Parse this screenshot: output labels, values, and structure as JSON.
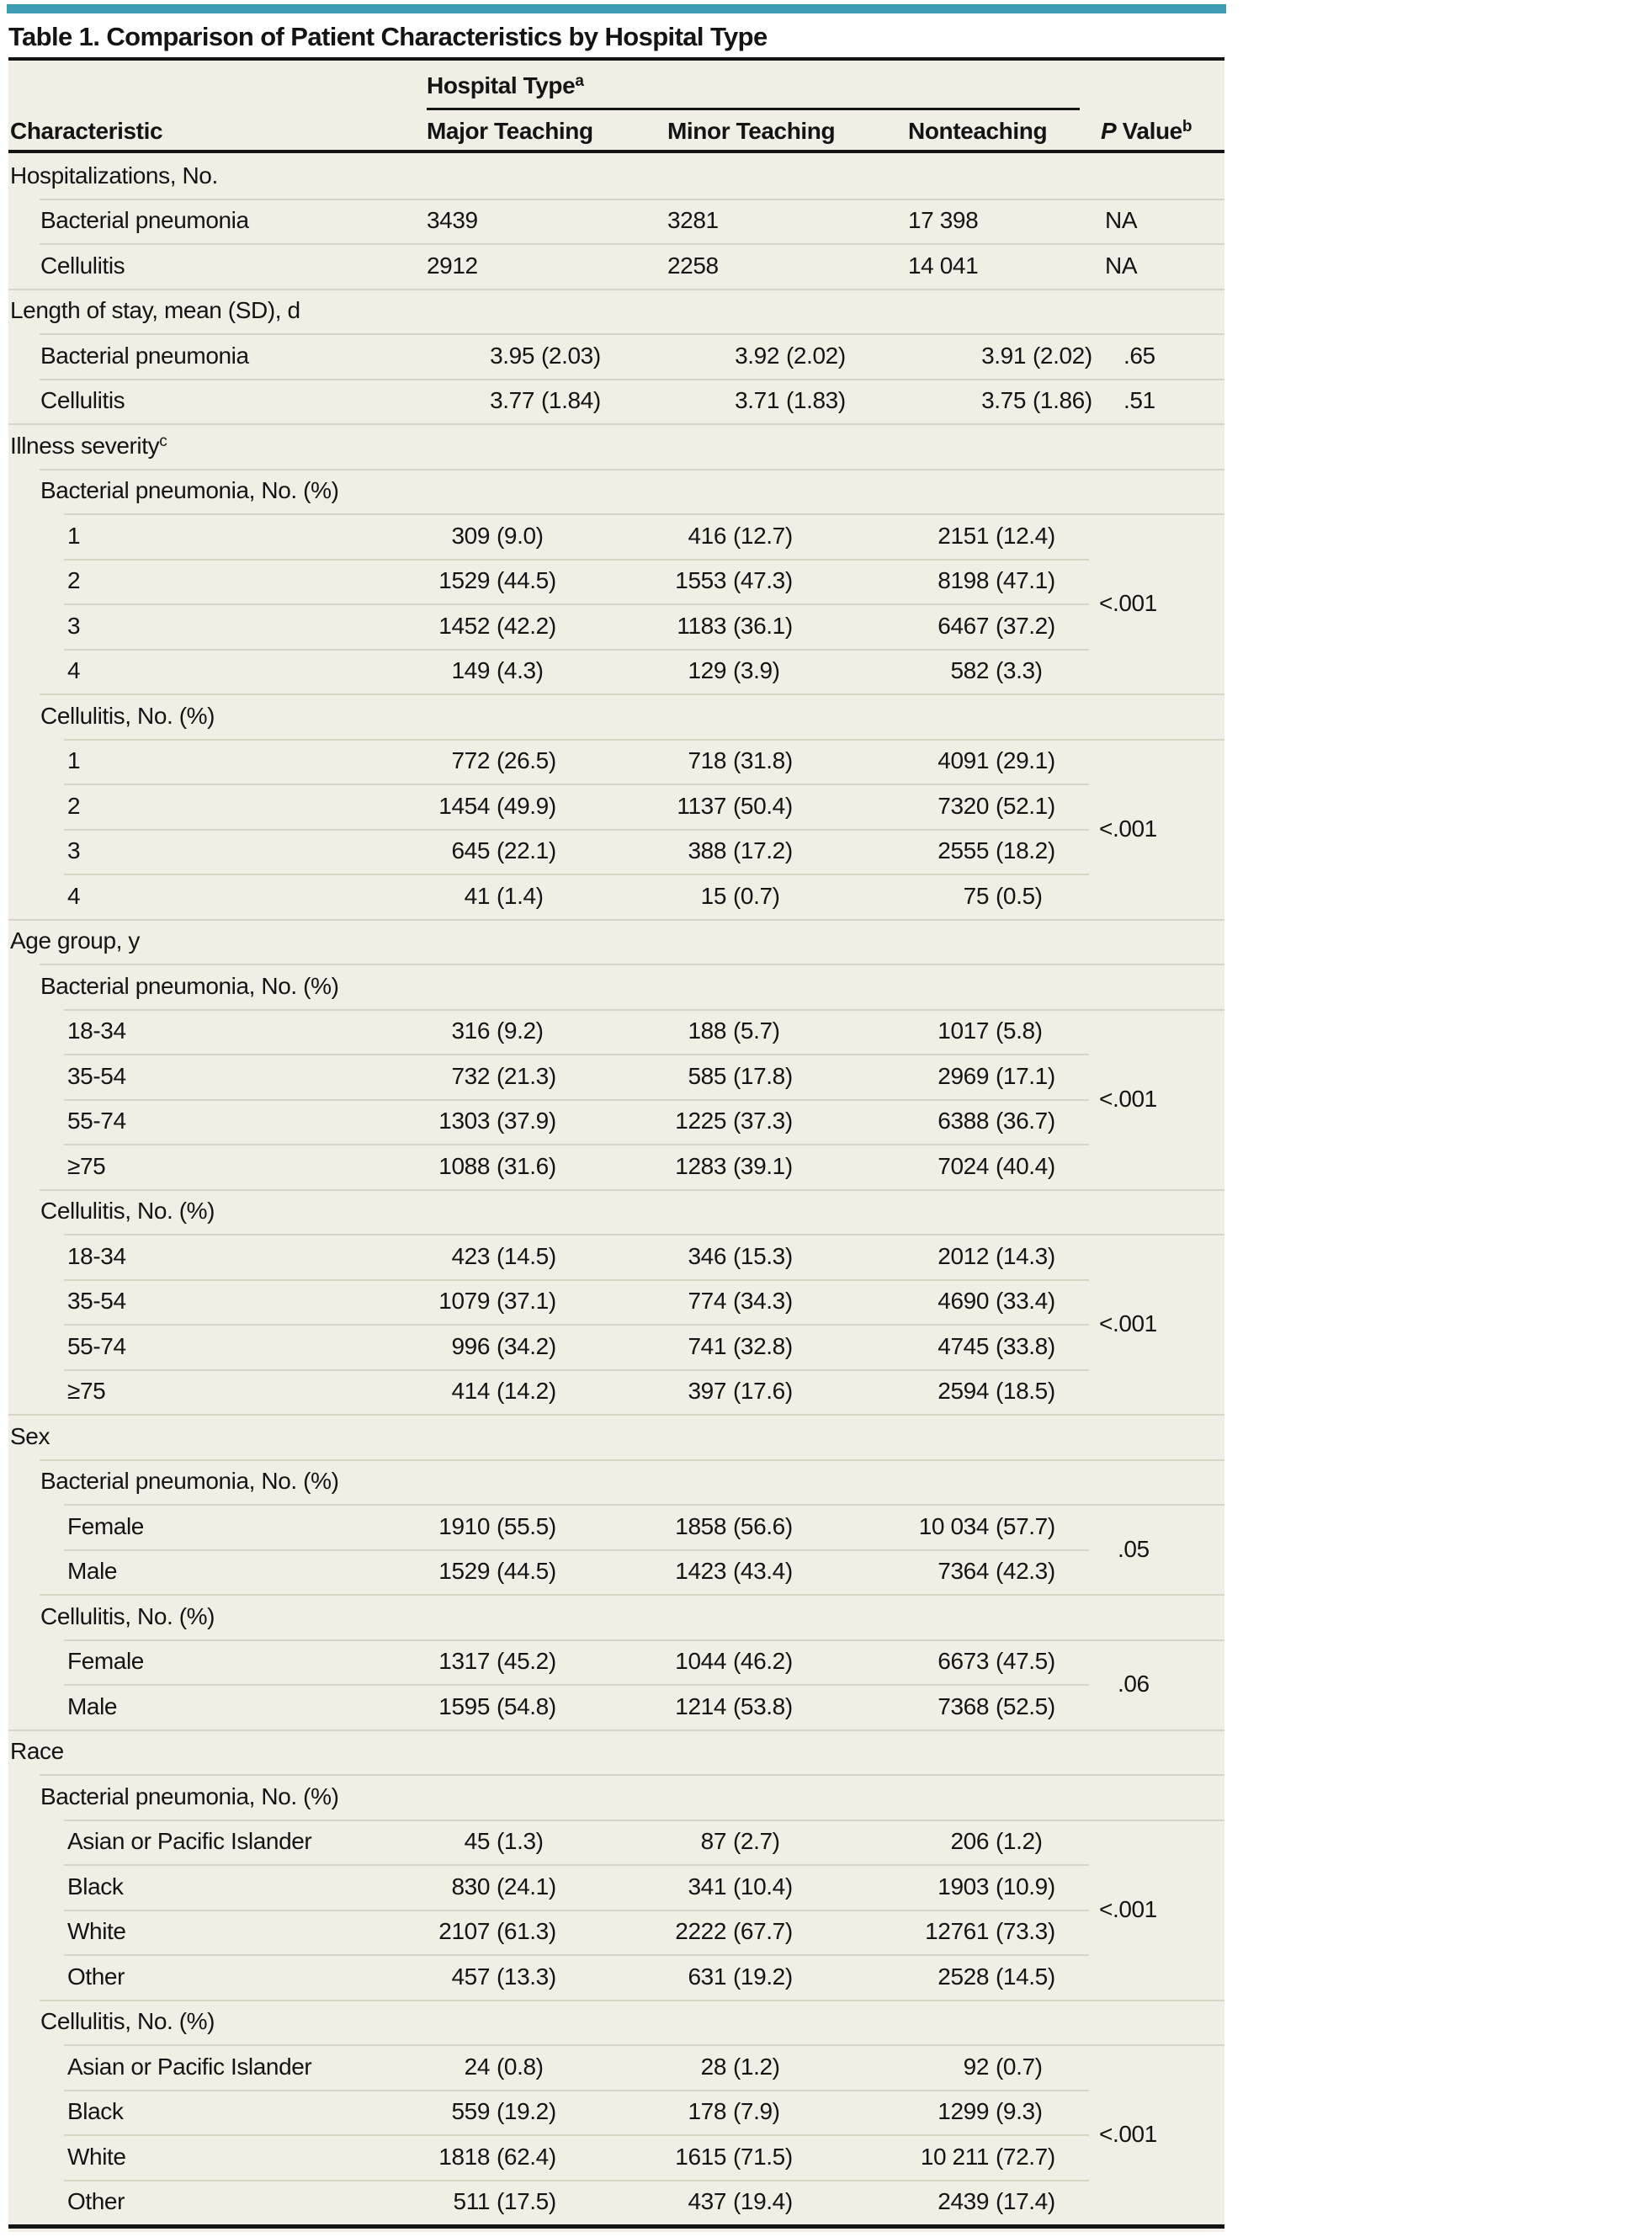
{
  "title": "Table 1. Comparison of Patient Characteristics by Hospital Type",
  "colors": {
    "accent_teal": "#3D9CB1",
    "table_background": "#F1EFE5",
    "rule_black": "#141414",
    "row_line_gray": "#D8D5C6",
    "text": "#141414"
  },
  "header": {
    "characteristic": "Characteristic",
    "group_label": "Hospital Type",
    "group_sup": "a",
    "col_major": "Major Teaching",
    "col_minor": "Minor Teaching",
    "col_nonteaching": "Nonteaching",
    "p_label_italic": "P",
    "p_label_rest": " Value",
    "p_sup": "b"
  },
  "sections": [
    {
      "header": "Hospitalizations, No.",
      "sup": "",
      "groups": [
        {
          "subheader": null,
          "kind": "count",
          "span_p": null,
          "rows": [
            {
              "label": "Bacterial pneumonia",
              "cells": [
                {
                  "n": "3439",
                  "pct": ""
                },
                {
                  "n": "3281",
                  "pct": ""
                },
                {
                  "n": "17 398",
                  "pct": ""
                }
              ],
              "p": "NA"
            },
            {
              "label": "Cellulitis",
              "cells": [
                {
                  "n": "2912",
                  "pct": ""
                },
                {
                  "n": "2258",
                  "pct": ""
                },
                {
                  "n": "14 041",
                  "pct": ""
                }
              ],
              "p": "NA"
            }
          ]
        }
      ]
    },
    {
      "header": "Length of stay, mean (SD), d",
      "sup": "",
      "groups": [
        {
          "subheader": null,
          "kind": "mean",
          "span_p": null,
          "rows": [
            {
              "label": "Bacterial pneumonia",
              "cells": [
                {
                  "n": "3.95",
                  "pct": "(2.03)"
                },
                {
                  "n": "3.92",
                  "pct": "(2.02)"
                },
                {
                  "n": "3.91",
                  "pct": "(2.02)"
                }
              ],
              "p": ".65"
            },
            {
              "label": "Cellulitis",
              "cells": [
                {
                  "n": "3.77",
                  "pct": "(1.84)"
                },
                {
                  "n": "3.71",
                  "pct": "(1.83)"
                },
                {
                  "n": "3.75",
                  "pct": "(1.86)"
                }
              ],
              "p": ".51"
            }
          ]
        }
      ]
    },
    {
      "header": "Illness severity",
      "sup": "c",
      "groups": [
        {
          "subheader": "Bacterial pneumonia, No. (%)",
          "kind": "pct",
          "span_p": "<.001",
          "rows": [
            {
              "label": "1",
              "cells": [
                {
                  "n": "309",
                  "pct": "(9.0)"
                },
                {
                  "n": "416",
                  "pct": "(12.7)"
                },
                {
                  "n": "2151",
                  "pct": "(12.4)"
                }
              ],
              "p": null
            },
            {
              "label": "2",
              "cells": [
                {
                  "n": "1529",
                  "pct": "(44.5)"
                },
                {
                  "n": "1553",
                  "pct": "(47.3)"
                },
                {
                  "n": "8198",
                  "pct": "(47.1)"
                }
              ],
              "p": null
            },
            {
              "label": "3",
              "cells": [
                {
                  "n": "1452",
                  "pct": "(42.2)"
                },
                {
                  "n": "1183",
                  "pct": "(36.1)"
                },
                {
                  "n": "6467",
                  "pct": "(37.2)"
                }
              ],
              "p": null
            },
            {
              "label": "4",
              "cells": [
                {
                  "n": "149",
                  "pct": "(4.3)"
                },
                {
                  "n": "129",
                  "pct": "(3.9)"
                },
                {
                  "n": "582",
                  "pct": "(3.3)"
                }
              ],
              "p": null
            }
          ]
        },
        {
          "subheader": "Cellulitis, No. (%)",
          "kind": "pct",
          "span_p": "<.001",
          "rows": [
            {
              "label": "1",
              "cells": [
                {
                  "n": "772",
                  "pct": "(26.5)"
                },
                {
                  "n": "718",
                  "pct": "(31.8)"
                },
                {
                  "n": "4091",
                  "pct": "(29.1)"
                }
              ],
              "p": null
            },
            {
              "label": "2",
              "cells": [
                {
                  "n": "1454",
                  "pct": "(49.9)"
                },
                {
                  "n": "1137",
                  "pct": "(50.4)"
                },
                {
                  "n": "7320",
                  "pct": "(52.1)"
                }
              ],
              "p": null
            },
            {
              "label": "3",
              "cells": [
                {
                  "n": "645",
                  "pct": "(22.1)"
                },
                {
                  "n": "388",
                  "pct": "(17.2)"
                },
                {
                  "n": "2555",
                  "pct": "(18.2)"
                }
              ],
              "p": null
            },
            {
              "label": "4",
              "cells": [
                {
                  "n": "41",
                  "pct": "(1.4)"
                },
                {
                  "n": "15",
                  "pct": "(0.7)"
                },
                {
                  "n": "75",
                  "pct": "(0.5)"
                }
              ],
              "p": null
            }
          ]
        }
      ]
    },
    {
      "header": "Age group, y",
      "sup": "",
      "groups": [
        {
          "subheader": "Bacterial pneumonia, No. (%)",
          "kind": "pct",
          "span_p": "<.001",
          "rows": [
            {
              "label": "18-34",
              "cells": [
                {
                  "n": "316",
                  "pct": "(9.2)"
                },
                {
                  "n": "188",
                  "pct": "(5.7)"
                },
                {
                  "n": "1017",
                  "pct": "(5.8)"
                }
              ],
              "p": null
            },
            {
              "label": "35-54",
              "cells": [
                {
                  "n": "732",
                  "pct": "(21.3)"
                },
                {
                  "n": "585",
                  "pct": "(17.8)"
                },
                {
                  "n": "2969",
                  "pct": "(17.1)"
                }
              ],
              "p": null
            },
            {
              "label": "55-74",
              "cells": [
                {
                  "n": "1303",
                  "pct": "(37.9)"
                },
                {
                  "n": "1225",
                  "pct": "(37.3)"
                },
                {
                  "n": "6388",
                  "pct": "(36.7)"
                }
              ],
              "p": null
            },
            {
              "label": "≥75",
              "cells": [
                {
                  "n": "1088",
                  "pct": "(31.6)"
                },
                {
                  "n": "1283",
                  "pct": "(39.1)"
                },
                {
                  "n": "7024",
                  "pct": "(40.4)"
                }
              ],
              "p": null
            }
          ]
        },
        {
          "subheader": "Cellulitis, No. (%)",
          "kind": "pct",
          "span_p": "<.001",
          "rows": [
            {
              "label": "18-34",
              "cells": [
                {
                  "n": "423",
                  "pct": "(14.5)"
                },
                {
                  "n": "346",
                  "pct": "(15.3)"
                },
                {
                  "n": "2012",
                  "pct": "(14.3)"
                }
              ],
              "p": null
            },
            {
              "label": "35-54",
              "cells": [
                {
                  "n": "1079",
                  "pct": "(37.1)"
                },
                {
                  "n": "774",
                  "pct": "(34.3)"
                },
                {
                  "n": "4690",
                  "pct": "(33.4)"
                }
              ],
              "p": null
            },
            {
              "label": "55-74",
              "cells": [
                {
                  "n": "996",
                  "pct": "(34.2)"
                },
                {
                  "n": "741",
                  "pct": "(32.8)"
                },
                {
                  "n": "4745",
                  "pct": "(33.8)"
                }
              ],
              "p": null
            },
            {
              "label": "≥75",
              "cells": [
                {
                  "n": "414",
                  "pct": "(14.2)"
                },
                {
                  "n": "397",
                  "pct": "(17.6)"
                },
                {
                  "n": "2594",
                  "pct": "(18.5)"
                }
              ],
              "p": null
            }
          ]
        }
      ]
    },
    {
      "header": "Sex",
      "sup": "",
      "groups": [
        {
          "subheader": "Bacterial pneumonia, No. (%)",
          "kind": "pct",
          "span_p": ".05",
          "rows": [
            {
              "label": "Female",
              "cells": [
                {
                  "n": "1910",
                  "pct": "(55.5)"
                },
                {
                  "n": "1858",
                  "pct": "(56.6)"
                },
                {
                  "n": "10 034",
                  "pct": "(57.7)"
                }
              ],
              "p": null
            },
            {
              "label": "Male",
              "cells": [
                {
                  "n": "1529",
                  "pct": "(44.5)"
                },
                {
                  "n": "1423",
                  "pct": "(43.4)"
                },
                {
                  "n": "7364",
                  "pct": "(42.3)"
                }
              ],
              "p": null
            }
          ]
        },
        {
          "subheader": "Cellulitis, No. (%)",
          "kind": "pct",
          "span_p": ".06",
          "rows": [
            {
              "label": "Female",
              "cells": [
                {
                  "n": "1317",
                  "pct": "(45.2)"
                },
                {
                  "n": "1044",
                  "pct": "(46.2)"
                },
                {
                  "n": "6673",
                  "pct": "(47.5)"
                }
              ],
              "p": null
            },
            {
              "label": "Male",
              "cells": [
                {
                  "n": "1595",
                  "pct": "(54.8)"
                },
                {
                  "n": "1214",
                  "pct": "(53.8)"
                },
                {
                  "n": "7368",
                  "pct": "(52.5)"
                }
              ],
              "p": null
            }
          ]
        }
      ]
    },
    {
      "header": "Race",
      "sup": "",
      "groups": [
        {
          "subheader": "Bacterial pneumonia, No. (%)",
          "kind": "pct",
          "span_p": "<.001",
          "rows": [
            {
              "label": "Asian or Pacific Islander",
              "cells": [
                {
                  "n": "45",
                  "pct": "(1.3)"
                },
                {
                  "n": "87",
                  "pct": "(2.7)"
                },
                {
                  "n": "206",
                  "pct": "(1.2)"
                }
              ],
              "p": null
            },
            {
              "label": "Black",
              "cells": [
                {
                  "n": "830",
                  "pct": "(24.1)"
                },
                {
                  "n": "341",
                  "pct": "(10.4)"
                },
                {
                  "n": "1903",
                  "pct": "(10.9)"
                }
              ],
              "p": null
            },
            {
              "label": "White",
              "cells": [
                {
                  "n": "2107",
                  "pct": "(61.3)"
                },
                {
                  "n": "2222",
                  "pct": "(67.7)"
                },
                {
                  "n": "12761",
                  "pct": "(73.3)"
                }
              ],
              "p": null
            },
            {
              "label": "Other",
              "cells": [
                {
                  "n": "457",
                  "pct": "(13.3)"
                },
                {
                  "n": "631",
                  "pct": "(19.2)"
                },
                {
                  "n": "2528",
                  "pct": "(14.5)"
                }
              ],
              "p": null
            }
          ]
        },
        {
          "subheader": "Cellulitis, No. (%)",
          "kind": "pct",
          "span_p": "<.001",
          "rows": [
            {
              "label": "Asian or Pacific Islander",
              "cells": [
                {
                  "n": "24",
                  "pct": "(0.8)"
                },
                {
                  "n": "28",
                  "pct": "(1.2)"
                },
                {
                  "n": "92",
                  "pct": "(0.7)"
                }
              ],
              "p": null
            },
            {
              "label": "Black",
              "cells": [
                {
                  "n": "559",
                  "pct": "(19.2)"
                },
                {
                  "n": "178",
                  "pct": "(7.9)"
                },
                {
                  "n": "1299",
                  "pct": "(9.3)"
                }
              ],
              "p": null
            },
            {
              "label": "White",
              "cells": [
                {
                  "n": "1818",
                  "pct": "(62.4)"
                },
                {
                  "n": "1615",
                  "pct": "(71.5)"
                },
                {
                  "n": "10 211",
                  "pct": "(72.7)"
                }
              ],
              "p": null
            },
            {
              "label": "Other",
              "cells": [
                {
                  "n": "511",
                  "pct": "(17.5)"
                },
                {
                  "n": "437",
                  "pct": "(19.4)"
                },
                {
                  "n": "2439",
                  "pct": "(17.4)"
                }
              ],
              "p": null
            }
          ]
        }
      ]
    }
  ]
}
